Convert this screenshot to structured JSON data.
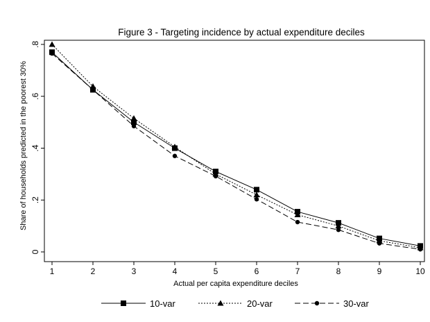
{
  "chart_data": {
    "type": "line",
    "title": "Figure 3 - Targeting incidence by actual expenditure deciles",
    "xlabel": "Actual per capita expenditure deciles",
    "ylabel": "Share of households predicted in the poorest 30%",
    "x": [
      1,
      2,
      3,
      4,
      5,
      6,
      7,
      8,
      9,
      10
    ],
    "xticks": [
      "1",
      "2",
      "3",
      "4",
      "5",
      "6",
      "7",
      "8",
      "9",
      "10"
    ],
    "xlim": [
      1,
      10
    ],
    "ylim": [
      0,
      0.8
    ],
    "yticks": [
      {
        "value": 0,
        "label": "0"
      },
      {
        "value": 0.2,
        "label": ".2"
      },
      {
        "value": 0.4,
        "label": ".4"
      },
      {
        "value": 0.6,
        "label": ".6"
      },
      {
        "value": 0.8,
        "label": ".8"
      }
    ],
    "grid": false,
    "legend_position": "bottom",
    "series": [
      {
        "name": "10-var",
        "marker": "square",
        "dash": "solid",
        "color": "#000000",
        "values": [
          0.77,
          0.625,
          0.5,
          0.4,
          0.31,
          0.24,
          0.155,
          0.112,
          0.052,
          0.023
        ]
      },
      {
        "name": "20-var",
        "marker": "triangle",
        "dash": "dotted",
        "color": "#000000",
        "values": [
          0.8,
          0.638,
          0.515,
          0.405,
          0.3,
          0.22,
          0.143,
          0.1,
          0.043,
          0.016
        ]
      },
      {
        "name": "30-var",
        "marker": "circle",
        "dash": "dashed",
        "color": "#000000",
        "values": [
          0.765,
          0.625,
          0.485,
          0.37,
          0.292,
          0.203,
          0.115,
          0.085,
          0.033,
          0.01
        ]
      }
    ]
  }
}
